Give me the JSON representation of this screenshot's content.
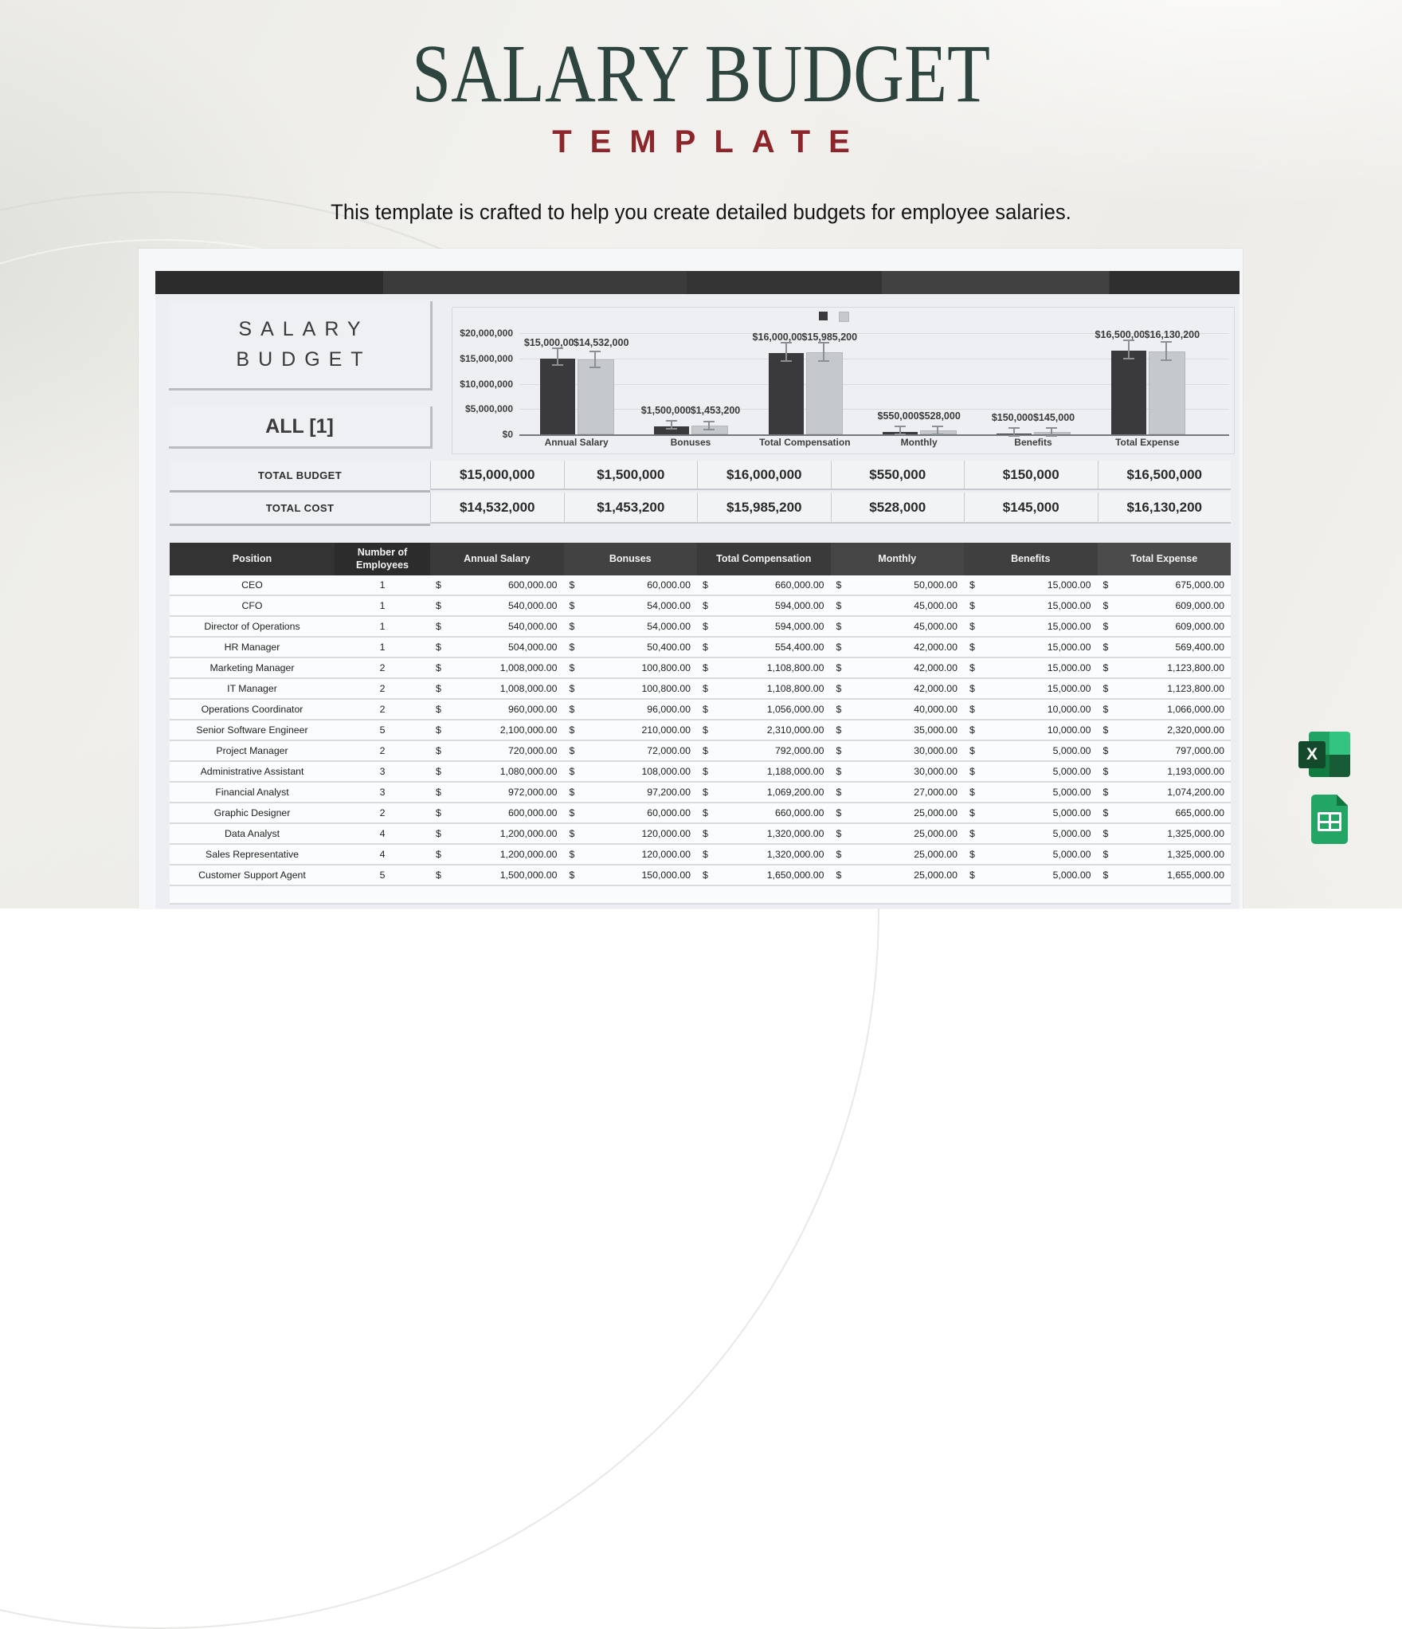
{
  "page": {
    "title": "SALARY BUDGET",
    "template_label": "TEMPLATE",
    "tagline": "This template is  crafted to help you create detailed budgets for employee salaries.",
    "colors": {
      "title_green": "#2e443f",
      "template_red": "#8d262a",
      "bar_dark": "#3a3a3c",
      "bar_light": "#c6c9cc",
      "excel_green": "#21a366",
      "sheets_green": "#23a566"
    }
  },
  "sheet": {
    "panel_title_line1": "SALARY",
    "panel_title_line2": "BUDGET",
    "filter_label": "ALL [1]",
    "totals": [
      {
        "label": "TOTAL BUDGET",
        "values": [
          "$15,000,000",
          "$1,500,000",
          "$16,000,000",
          "$550,000",
          "$150,000",
          "$16,500,000"
        ]
      },
      {
        "label": "TOTAL COST",
        "values": [
          "$14,532,000",
          "$1,453,200",
          "$15,985,200",
          "$528,000",
          "$145,000",
          "$16,130,200"
        ]
      }
    ]
  },
  "chart_data": {
    "type": "bar",
    "categories": [
      "Annual Salary",
      "Bonuses",
      "Total Compensation",
      "Monthly",
      "Benefits",
      "Total Expense"
    ],
    "series": [
      {
        "name": "Total Budget",
        "color": "#3a3a3c",
        "values": [
          15000000,
          1500000,
          16000000,
          550000,
          150000,
          16500000
        ],
        "labels": [
          "$15,000,000",
          "$1,500,000",
          "$16,000,000",
          "$550,000",
          "$150,000",
          "$16,500,000"
        ]
      },
      {
        "name": "Total Cost",
        "color": "#c6c9cc",
        "values": [
          14532000,
          1453200,
          15985200,
          528000,
          145000,
          16130200
        ],
        "labels": [
          "$14,532,000",
          "$1,453,200",
          "$15,985,200",
          "$528,000",
          "$145,000",
          "$16,130,200"
        ]
      }
    ],
    "y_ticks": [
      "$20,000,000",
      "$15,000,000",
      "$10,000,000",
      "$5,000,000",
      "$0"
    ],
    "ylim": [
      0,
      20000000
    ],
    "grid": true,
    "error_bars": true,
    "legend_position": "top-center",
    "xlabel": "",
    "ylabel": ""
  },
  "table": {
    "headers": [
      "Position",
      "Number of Employees",
      "Annual Salary",
      "Bonuses",
      "Total Compensation",
      "Monthly",
      "Benefits",
      "Total Expense"
    ],
    "currency_symbol": "$",
    "money_columns": [
      "annual_salary",
      "bonuses",
      "total_compensation",
      "monthly",
      "benefits",
      "total_expense"
    ],
    "header_shades": [
      "#333333",
      "#2c2c2c",
      "#3a3a3a",
      "#424242",
      "#3a3a3a",
      "#454545",
      "#3f3f3f",
      "#4b4b4b"
    ],
    "rows": [
      {
        "position": "CEO",
        "employees": "1",
        "annual_salary": "600,000.00",
        "bonuses": "60,000.00",
        "total_compensation": "660,000.00",
        "monthly": "50,000.00",
        "benefits": "15,000.00",
        "total_expense": "675,000.00"
      },
      {
        "position": "CFO",
        "employees": "1",
        "annual_salary": "540,000.00",
        "bonuses": "54,000.00",
        "total_compensation": "594,000.00",
        "monthly": "45,000.00",
        "benefits": "15,000.00",
        "total_expense": "609,000.00"
      },
      {
        "position": "Director of Operations",
        "employees": "1",
        "annual_salary": "540,000.00",
        "bonuses": "54,000.00",
        "total_compensation": "594,000.00",
        "monthly": "45,000.00",
        "benefits": "15,000.00",
        "total_expense": "609,000.00"
      },
      {
        "position": "HR Manager",
        "employees": "1",
        "annual_salary": "504,000.00",
        "bonuses": "50,400.00",
        "total_compensation": "554,400.00",
        "monthly": "42,000.00",
        "benefits": "15,000.00",
        "total_expense": "569,400.00"
      },
      {
        "position": "Marketing Manager",
        "employees": "2",
        "annual_salary": "1,008,000.00",
        "bonuses": "100,800.00",
        "total_compensation": "1,108,800.00",
        "monthly": "42,000.00",
        "benefits": "15,000.00",
        "total_expense": "1,123,800.00"
      },
      {
        "position": "IT Manager",
        "employees": "2",
        "annual_salary": "1,008,000.00",
        "bonuses": "100,800.00",
        "total_compensation": "1,108,800.00",
        "monthly": "42,000.00",
        "benefits": "15,000.00",
        "total_expense": "1,123,800.00"
      },
      {
        "position": "Operations Coordinator",
        "employees": "2",
        "annual_salary": "960,000.00",
        "bonuses": "96,000.00",
        "total_compensation": "1,056,000.00",
        "monthly": "40,000.00",
        "benefits": "10,000.00",
        "total_expense": "1,066,000.00"
      },
      {
        "position": "Senior Software Engineer",
        "employees": "5",
        "annual_salary": "2,100,000.00",
        "bonuses": "210,000.00",
        "total_compensation": "2,310,000.00",
        "monthly": "35,000.00",
        "benefits": "10,000.00",
        "total_expense": "2,320,000.00"
      },
      {
        "position": "Project Manager",
        "employees": "2",
        "annual_salary": "720,000.00",
        "bonuses": "72,000.00",
        "total_compensation": "792,000.00",
        "monthly": "30,000.00",
        "benefits": "5,000.00",
        "total_expense": "797,000.00"
      },
      {
        "position": "Administrative Assistant",
        "employees": "3",
        "annual_salary": "1,080,000.00",
        "bonuses": "108,000.00",
        "total_compensation": "1,188,000.00",
        "monthly": "30,000.00",
        "benefits": "5,000.00",
        "total_expense": "1,193,000.00"
      },
      {
        "position": "Financial Analyst",
        "employees": "3",
        "annual_salary": "972,000.00",
        "bonuses": "97,200.00",
        "total_compensation": "1,069,200.00",
        "monthly": "27,000.00",
        "benefits": "5,000.00",
        "total_expense": "1,074,200.00"
      },
      {
        "position": "Graphic Designer",
        "employees": "2",
        "annual_salary": "600,000.00",
        "bonuses": "60,000.00",
        "total_compensation": "660,000.00",
        "monthly": "25,000.00",
        "benefits": "5,000.00",
        "total_expense": "665,000.00"
      },
      {
        "position": "Data Analyst",
        "employees": "4",
        "annual_salary": "1,200,000.00",
        "bonuses": "120,000.00",
        "total_compensation": "1,320,000.00",
        "monthly": "25,000.00",
        "benefits": "5,000.00",
        "total_expense": "1,325,000.00"
      },
      {
        "position": "Sales Representative",
        "employees": "4",
        "annual_salary": "1,200,000.00",
        "bonuses": "120,000.00",
        "total_compensation": "1,320,000.00",
        "monthly": "25,000.00",
        "benefits": "5,000.00",
        "total_expense": "1,325,000.00"
      },
      {
        "position": "Customer Support Agent",
        "employees": "5",
        "annual_salary": "1,500,000.00",
        "bonuses": "150,000.00",
        "total_compensation": "1,650,000.00",
        "monthly": "25,000.00",
        "benefits": "5,000.00",
        "total_expense": "1,655,000.00"
      }
    ]
  },
  "icons": {
    "excel_letter": "X"
  }
}
